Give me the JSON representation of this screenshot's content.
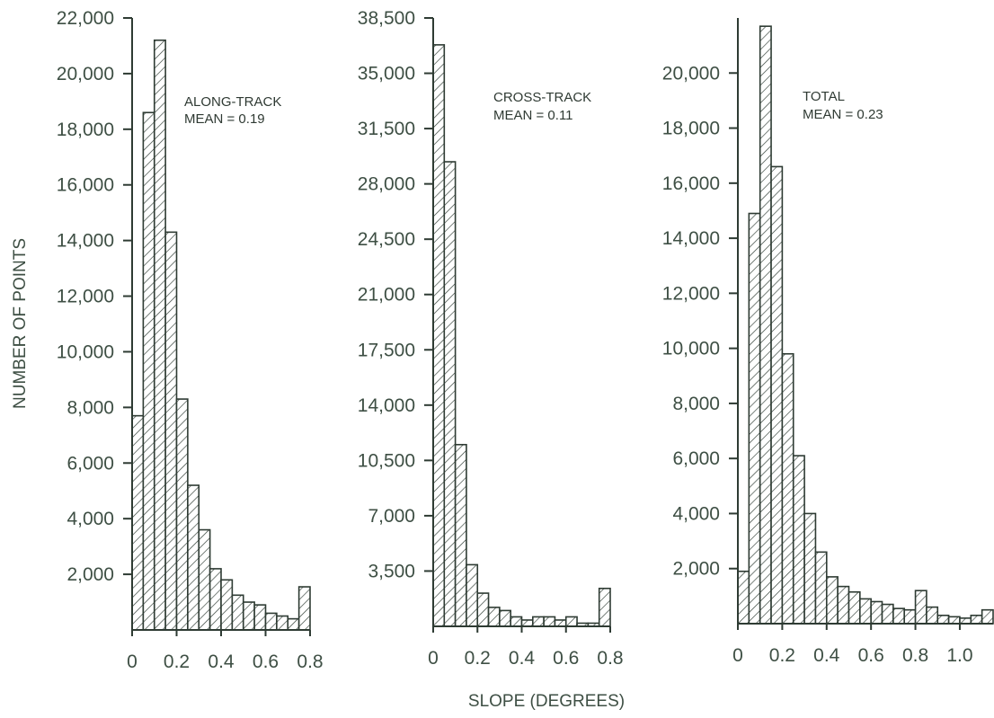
{
  "figure": {
    "ylabel": "NUMBER OF POINTS",
    "xlabel": "SLOPE (DEGREES)"
  },
  "colors": {
    "ink": "#2e3b33",
    "text": "#3e4f44",
    "background": "#ffffff"
  },
  "chart_data": [
    {
      "type": "bar",
      "histogram": true,
      "annotation_line1": "ALONG-TRACK",
      "annotation_line2": "MEAN = 0.19",
      "bin_width": 0.05,
      "bin_starts": [
        0.0,
        0.05,
        0.1,
        0.15,
        0.2,
        0.25,
        0.3,
        0.35,
        0.4,
        0.45,
        0.5,
        0.55,
        0.6,
        0.65,
        0.7,
        0.75
      ],
      "values": [
        7700,
        18600,
        21200,
        14300,
        8300,
        5200,
        3600,
        2200,
        1800,
        1250,
        1000,
        900,
        600,
        500,
        400,
        1550
      ],
      "xlim": [
        0,
        0.8
      ],
      "ylim": [
        0,
        22000
      ],
      "x_ticks": [
        "0",
        "0.2",
        "0.4",
        "0.6",
        "0.8"
      ],
      "y_ticks": [
        "2,000",
        "4,000",
        "6,000",
        "8,000",
        "10,000",
        "12,000",
        "14,000",
        "16,000",
        "18,000",
        "20,000",
        "22,000"
      ]
    },
    {
      "type": "bar",
      "histogram": true,
      "annotation_line1": "CROSS-TRACK",
      "annotation_line2": "MEAN = 0.11",
      "bin_width": 0.05,
      "bin_starts": [
        0.0,
        0.05,
        0.1,
        0.15,
        0.2,
        0.25,
        0.3,
        0.35,
        0.4,
        0.45,
        0.5,
        0.55,
        0.6,
        0.65,
        0.7,
        0.75
      ],
      "values": [
        36800,
        29400,
        11500,
        3900,
        2100,
        1200,
        1000,
        600,
        400,
        600,
        600,
        400,
        600,
        200,
        200,
        2400
      ],
      "xlim": [
        0,
        0.8
      ],
      "ylim": [
        0,
        38500
      ],
      "x_ticks": [
        "0",
        "0.2",
        "0.4",
        "0.6",
        "0.8"
      ],
      "y_ticks": [
        "3,500",
        "7,000",
        "10,500",
        "14,000",
        "17,500",
        "21,000",
        "24,500",
        "28,000",
        "31,500",
        "35,000",
        "38,500"
      ]
    },
    {
      "type": "bar",
      "histogram": true,
      "annotation_line1": "TOTAL",
      "annotation_line2": "MEAN = 0.23",
      "bin_width": 0.05,
      "bin_starts": [
        0.0,
        0.05,
        0.1,
        0.15,
        0.2,
        0.25,
        0.3,
        0.35,
        0.4,
        0.45,
        0.5,
        0.55,
        0.6,
        0.65,
        0.7,
        0.75,
        0.8,
        0.85,
        0.9,
        0.95,
        1.0,
        1.05,
        1.1
      ],
      "values": [
        1900,
        14900,
        21700,
        16600,
        9800,
        6100,
        4000,
        2600,
        1700,
        1350,
        1150,
        900,
        800,
        700,
        550,
        500,
        1200,
        600,
        300,
        250,
        200,
        300,
        500
      ],
      "xlim": [
        0,
        1.15
      ],
      "ylim": [
        0,
        22000
      ],
      "x_ticks": [
        "0",
        "0.2",
        "0.4",
        "0.6",
        "0.8",
        "1.0"
      ],
      "y_ticks": [
        "2,000",
        "4,000",
        "6,000",
        "8,000",
        "10,000",
        "12,000",
        "14,000",
        "16,000",
        "18,000",
        "20,000"
      ]
    }
  ]
}
